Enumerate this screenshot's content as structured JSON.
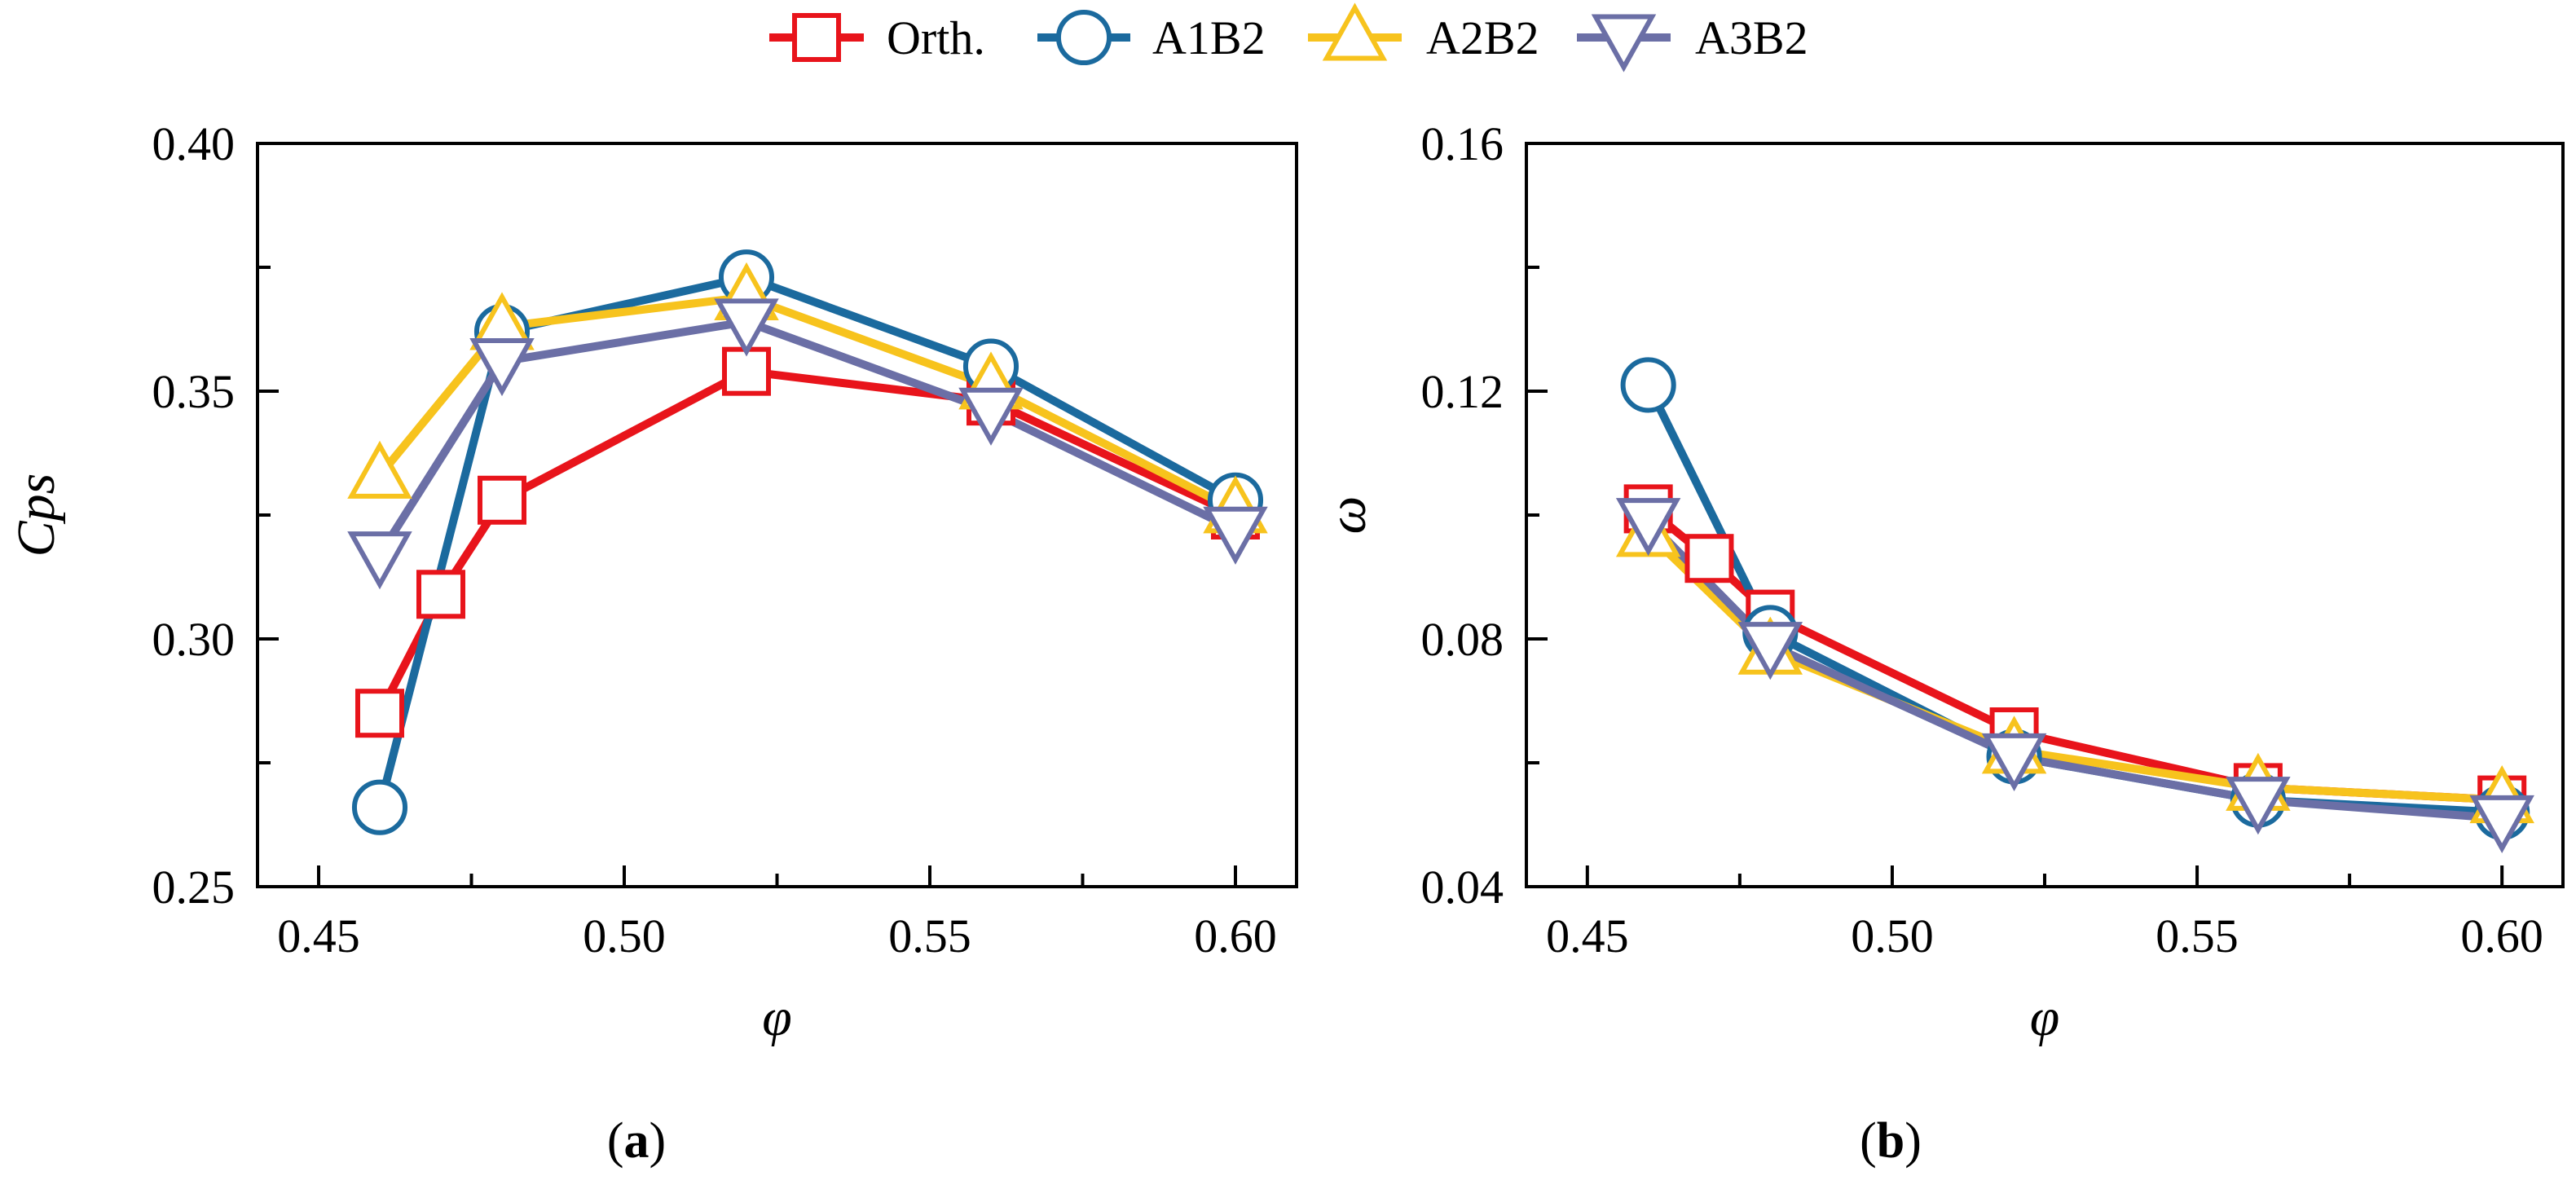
{
  "colors": {
    "Orth.": "#e8141b",
    "A1B2": "#1b6a9e",
    "A2B2": "#f7c31d",
    "A3B2": "#6b6fa6"
  },
  "legend": [
    {
      "name": "Orth.",
      "marker": "square-icon"
    },
    {
      "name": "A1B2",
      "marker": "circle-icon"
    },
    {
      "name": "A2B2",
      "marker": "triangle-up-icon"
    },
    {
      "name": "A3B2",
      "marker": "triangle-down-icon"
    }
  ],
  "chart_data": [
    {
      "type": "line",
      "panel_label": "a",
      "xlabel": "φ",
      "ylabel": "Cps",
      "xlim": [
        0.44,
        0.61
      ],
      "ylim": [
        0.25,
        0.4
      ],
      "xticks": [
        0.45,
        0.5,
        0.55,
        0.6
      ],
      "xtick_labels": [
        "0.45",
        "0.50",
        "0.55",
        "0.60"
      ],
      "yticks": [
        0.25,
        0.3,
        0.35,
        0.4
      ],
      "ytick_labels": [
        "0.25",
        "0.30",
        "0.35",
        "0.40"
      ],
      "x_minor": [
        0.475,
        0.525,
        0.575
      ],
      "y_minor": [
        0.275,
        0.325,
        0.375
      ],
      "series": [
        {
          "name": "Orth.",
          "marker": "square",
          "x": [
            0.46,
            0.47,
            0.48,
            0.52,
            0.56,
            0.6
          ],
          "y": [
            0.285,
            0.309,
            0.328,
            0.354,
            0.348,
            0.325
          ]
        },
        {
          "name": "A1B2",
          "marker": "circle",
          "x": [
            0.46,
            0.48,
            0.52,
            0.56,
            0.6
          ],
          "y": [
            0.266,
            0.362,
            0.373,
            0.355,
            0.328
          ]
        },
        {
          "name": "A2B2",
          "marker": "triangle-up",
          "x": [
            0.46,
            0.48,
            0.52,
            0.56,
            0.6
          ],
          "y": [
            0.333,
            0.363,
            0.369,
            0.351,
            0.326
          ]
        },
        {
          "name": "A3B2",
          "marker": "triangle-down",
          "x": [
            0.46,
            0.48,
            0.52,
            0.56,
            0.6
          ],
          "y": [
            0.317,
            0.356,
            0.364,
            0.346,
            0.322
          ]
        }
      ]
    },
    {
      "type": "line",
      "panel_label": "b",
      "xlabel": "φ",
      "ylabel": "ω",
      "xlim": [
        0.44,
        0.61
      ],
      "ylim": [
        0.04,
        0.16
      ],
      "xticks": [
        0.45,
        0.5,
        0.55,
        0.6
      ],
      "xtick_labels": [
        "0.45",
        "0.50",
        "0.55",
        "0.60"
      ],
      "yticks": [
        0.04,
        0.08,
        0.12,
        0.16
      ],
      "ytick_labels": [
        "0.04",
        "0.08",
        "0.12",
        "0.16"
      ],
      "x_minor": [
        0.475,
        0.525,
        0.575
      ],
      "y_minor": [
        0.06,
        0.1,
        0.14
      ],
      "series": [
        {
          "name": "Orth.",
          "marker": "square",
          "x": [
            0.46,
            0.47,
            0.48,
            0.52,
            0.56,
            0.6
          ],
          "y": [
            0.101,
            0.093,
            0.084,
            0.065,
            0.056,
            0.054
          ]
        },
        {
          "name": "A1B2",
          "marker": "circle",
          "x": [
            0.46,
            0.48,
            0.52,
            0.56,
            0.6
          ],
          "y": [
            0.121,
            0.081,
            0.061,
            0.054,
            0.052
          ]
        },
        {
          "name": "A2B2",
          "marker": "triangle-up",
          "x": [
            0.46,
            0.48,
            0.52,
            0.56,
            0.6
          ],
          "y": [
            0.097,
            0.078,
            0.062,
            0.056,
            0.054
          ]
        },
        {
          "name": "A3B2",
          "marker": "triangle-down",
          "x": [
            0.46,
            0.48,
            0.52,
            0.56,
            0.6
          ],
          "y": [
            0.099,
            0.079,
            0.061,
            0.054,
            0.051
          ]
        }
      ]
    }
  ]
}
